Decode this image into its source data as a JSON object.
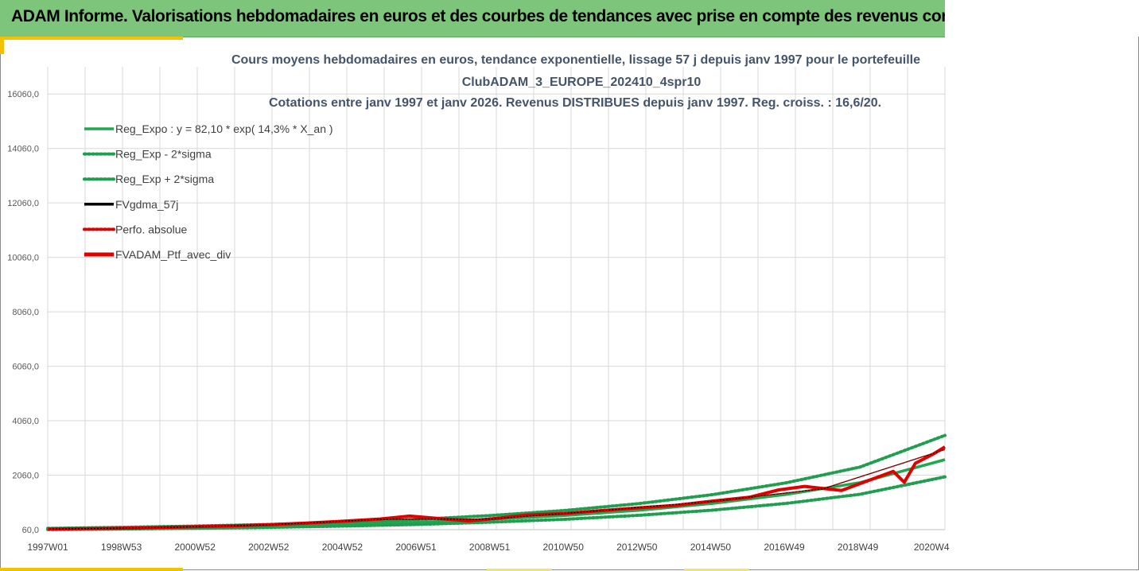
{
  "banner": {
    "title": "ADAM Informe. Valorisations hebdomadaires en euros et des courbes de tendances avec prise en compte des revenus connus distribués"
  },
  "colors": {
    "banner_bg": "#7dc57a",
    "reg_expo": "#1fa84f",
    "sigma_band": "#1e9e4e",
    "gdma": "#000000",
    "perfo": "#e00000",
    "ptf": "#e00000"
  },
  "chart_data": {
    "type": "line",
    "title_lines": [
      "Cours moyens hebdomadaires en euros, tendance exponentielle, lissage 57 j depuis janv 1997 pour le portefeuille",
      "ClubADAM_3_EUROPE_202410_4spr10",
      "Cotations entre janv 1997 et janv 2026. Revenus DISTRIBUES depuis janv 1997. Reg. croiss. : 16,6/20."
    ],
    "y_ticks": [
      "16060,0",
      "14060,0",
      "12060,0",
      "10060,0",
      "8060,0",
      "6060,0",
      "4060,0",
      "2060,0",
      "60,0"
    ],
    "y_values": [
      16060,
      14060,
      12060,
      10060,
      8060,
      6060,
      4060,
      2060,
      60
    ],
    "ylim": [
      60,
      17060
    ],
    "x_ticks": [
      "1997W01",
      "1998W53",
      "2000W52",
      "2002W52",
      "2004W52",
      "2006W51",
      "2008W51",
      "2010W50",
      "2012W50",
      "2014W50",
      "2016W49",
      "2018W49",
      "2020W4"
    ],
    "xlim_years": [
      1997.0,
      2021.3
    ],
    "grid": true,
    "legend_position": "top-left",
    "legend": [
      {
        "key": "reg_expo",
        "label": "Reg_Expo : y = 82,10 * exp( 14,3% *  X_an )",
        "style": "solid",
        "color": "#1fa84f"
      },
      {
        "key": "reg_minus",
        "label": "Reg_Exp - 2*sigma",
        "style": "dotted",
        "color": "#1e9e4e"
      },
      {
        "key": "reg_plus",
        "label": "Reg_Exp + 2*sigma",
        "style": "dotted",
        "color": "#1e9e4e"
      },
      {
        "key": "gdma",
        "label": "FVgdma_57j",
        "style": "solid",
        "color": "#000000"
      },
      {
        "key": "perfo",
        "label": "Perfo. absolue",
        "style": "dotted",
        "color": "#e00000"
      },
      {
        "key": "ptf",
        "label": "FVADAM_Ptf_avec_div",
        "style": "solid-thick",
        "color": "#e00000"
      }
    ],
    "series": [
      {
        "key": "reg_expo",
        "x": [
          1997,
          1999,
          2001,
          2003,
          2005,
          2007,
          2009,
          2011,
          2013,
          2015,
          2017,
          2019,
          2021.3
        ],
        "values": [
          82,
          110,
          145,
          190,
          250,
          330,
          440,
          580,
          770,
          1020,
          1350,
          1790,
          2630
        ]
      },
      {
        "key": "reg_minus",
        "x": [
          1997,
          1999,
          2001,
          2003,
          2005,
          2007,
          2009,
          2011,
          2013,
          2015,
          2017,
          2019,
          2021.3
        ],
        "values": [
          62,
          84,
          110,
          145,
          190,
          250,
          335,
          440,
          585,
          775,
          1025,
          1360,
          2000
        ]
      },
      {
        "key": "reg_plus",
        "x": [
          1997,
          1999,
          2001,
          2003,
          2005,
          2007,
          2009,
          2011,
          2013,
          2015,
          2017,
          2019,
          2021.3
        ],
        "values": [
          108,
          145,
          190,
          250,
          330,
          435,
          580,
          765,
          1015,
          1345,
          1780,
          2360,
          3520
        ]
      },
      {
        "key": "ptf",
        "x": [
          1997,
          1998,
          1999,
          2000,
          2001,
          2002,
          2003,
          2004,
          2005,
          2006,
          2006.8,
          2007.5,
          2008.4,
          2009.2,
          2010,
          2011,
          2012,
          2013,
          2014,
          2015,
          2016,
          2016.8,
          2017.5,
          2018.5,
          2019.3,
          2019.9,
          2020.2,
          2020.5,
          2021.0,
          2021.3
        ],
        "values": [
          80,
          95,
          110,
          140,
          170,
          200,
          240,
          300,
          370,
          450,
          560,
          480,
          380,
          480,
          600,
          650,
          760,
          860,
          950,
          1110,
          1250,
          1520,
          1650,
          1500,
          1900,
          2200,
          1800,
          2500,
          2850,
          3100
        ]
      },
      {
        "key": "gdma",
        "x": [
          1997,
          2000,
          2003,
          2006,
          2009,
          2012,
          2015,
          2018,
          2021.3
        ],
        "values": [
          80,
          135,
          235,
          440,
          450,
          760,
          1100,
          1560,
          3000
        ]
      },
      {
        "key": "perfo",
        "x": [
          1997,
          2000,
          2003,
          2006,
          2009,
          2012,
          2015,
          2018,
          2021.3
        ],
        "values": [
          80,
          135,
          235,
          440,
          450,
          760,
          1100,
          1560,
          3000
        ]
      }
    ]
  }
}
